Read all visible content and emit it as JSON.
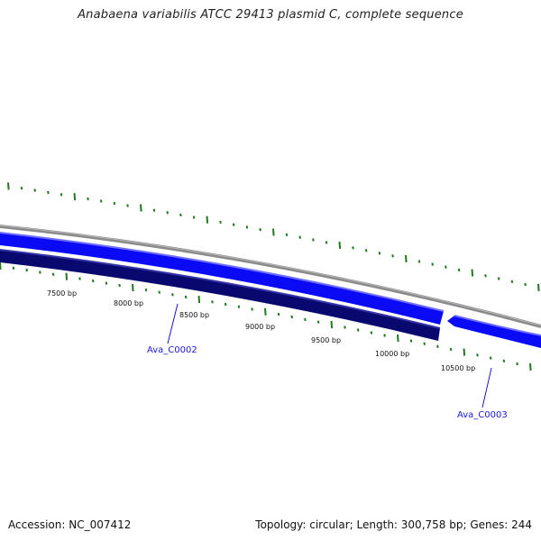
{
  "title": "Anabaena variabilis ATCC 29413 plasmid C, complete sequence",
  "footer": {
    "accession": "Accession: NC_007412",
    "summary": "Topology: circular; Length: 300,758 bp; Genes: 244"
  },
  "ruler_labels": [
    "7500 bp",
    "8000 bp",
    "8500 bp",
    "9000 bp",
    "9500 bp",
    "10000 bp",
    "10500 bp"
  ],
  "genes": [
    {
      "id": "Ava_C0002",
      "strand": "reverse",
      "color": "#1a1ad6"
    },
    {
      "id": "Ava_C0003",
      "strand": "reverse",
      "color": "#1a1ad6"
    }
  ],
  "colors": {
    "backbone": "#8a8a8a",
    "forward_gene": "#0a0af5",
    "reverse_gene": "#08086e",
    "gc_ticks": "#1f7a1f",
    "gene_label": "#1a1ad6"
  }
}
